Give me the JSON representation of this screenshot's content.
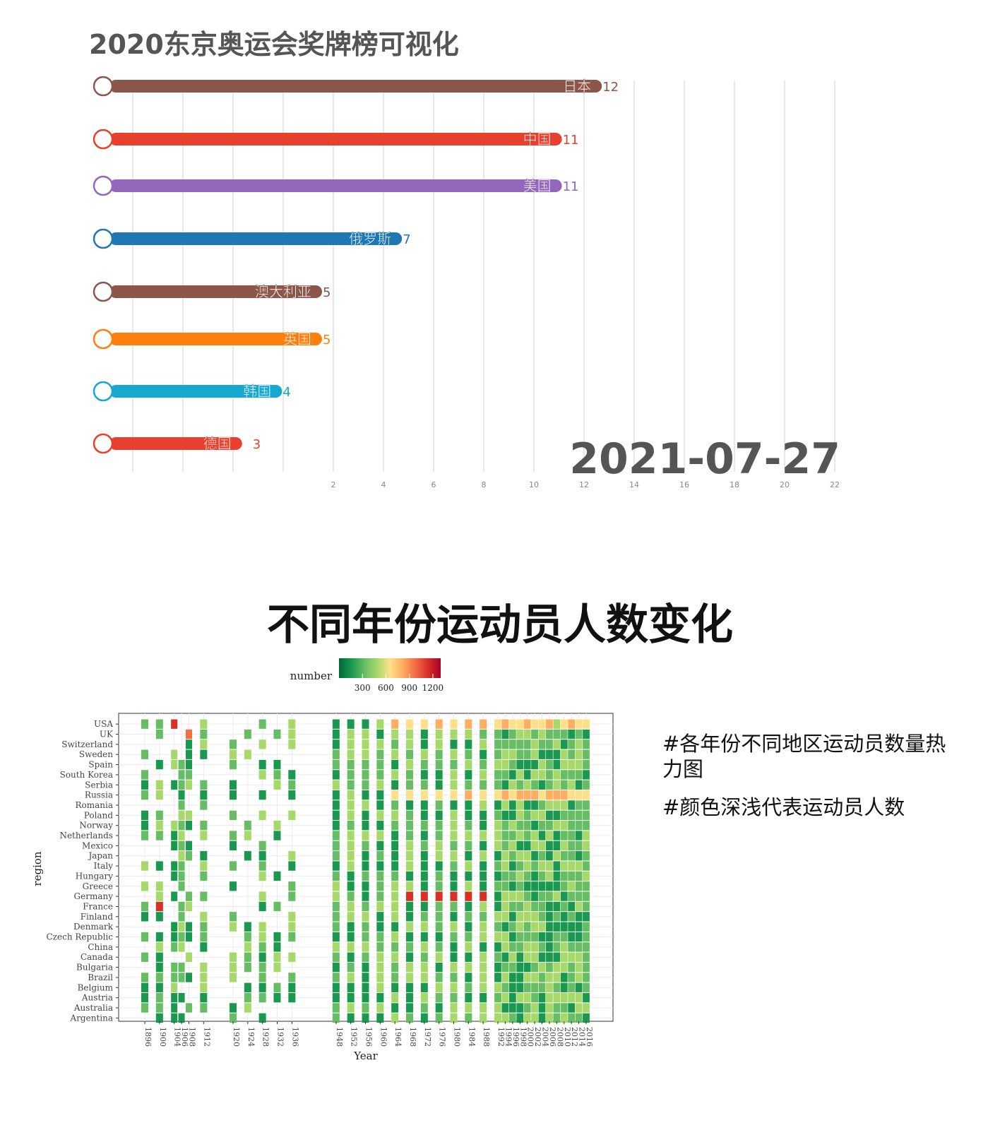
{
  "colors": {
    "title": "#555555",
    "grid": "#d0d0d0",
    "tick": "#888888",
    "date": "#555555",
    "heatmap_panel": "#ebebeb",
    "heatmap_scale": [
      "#006837",
      "#1a9850",
      "#66bd63",
      "#a6d96a",
      "#fee08b",
      "#fdae61",
      "#f46d43",
      "#d73027",
      "#a50026"
    ]
  },
  "chart_data": [
    {
      "type": "bar",
      "title": "2020东京奥运会奖牌榜可视化",
      "date_label": "2021-07-27",
      "orientation": "horizontal",
      "grid": true,
      "xlim": [
        0,
        22
      ],
      "x_ticks": [
        2,
        4,
        6,
        8,
        10,
        12,
        14,
        16,
        18,
        20,
        22
      ],
      "bars": [
        {
          "label": "日本",
          "value": 12,
          "color": "#8c564b",
          "icon": "circle-outline-icon"
        },
        {
          "label": "中国",
          "value": 11,
          "color": "#e8402e",
          "icon": "circle-outline-icon"
        },
        {
          "label": "美国",
          "value": 11,
          "color": "#9467bd",
          "icon": "circle-outline-icon"
        },
        {
          "label": "俄罗斯",
          "value": 7,
          "color": "#1f77b4",
          "icon": "circle-outline-icon"
        },
        {
          "label": "澳大利亚",
          "value": 5,
          "color": "#8c564b",
          "icon": "circle-outline-icon"
        },
        {
          "label": "英国",
          "value": 5,
          "color": "#ff7f0e",
          "icon": "circle-outline-icon"
        },
        {
          "label": "韩国",
          "value": 4,
          "color": "#17a8cf",
          "icon": "circle-outline-icon"
        },
        {
          "label": "德国",
          "value": 3,
          "color": "#e8402e",
          "icon": "circle-outline-icon"
        }
      ]
    },
    {
      "type": "heatmap",
      "title": "不同年份运动员人数变化",
      "xlabel": "Year",
      "ylabel": "region",
      "legend": {
        "title": "number",
        "placement": "top",
        "ticks": [
          300,
          600,
          900,
          1200
        ],
        "range": [
          0,
          1300
        ]
      },
      "years": [
        1896,
        1900,
        1904,
        1906,
        1908,
        1912,
        1920,
        1924,
        1928,
        1932,
        1936,
        1948,
        1952,
        1956,
        1960,
        1964,
        1968,
        1972,
        1976,
        1980,
        1984,
        1988,
        1992,
        1994,
        1996,
        1998,
        2000,
        2002,
        2004,
        2006,
        2008,
        2010,
        2012,
        2014,
        2016
      ],
      "regions": [
        "USA",
        "UK",
        "Switzerland",
        "Sweden",
        "Spain",
        "South Korea",
        "Serbia",
        "Russia",
        "Romania",
        "Poland",
        "Norway",
        "Netherlands",
        "Mexico",
        "Japan",
        "Italy",
        "Hungary",
        "Greece",
        "Germany",
        "France",
        "Finland",
        "Denmark",
        "Czech Republic",
        "China",
        "Canada",
        "Bulgaria",
        "Brazil",
        "Belgium",
        "Austria",
        "Australia",
        "Argentina"
      ],
      "notes": [
        "#各年份不同地区运动员数量热力图",
        "#颜色深浅代表运动员人数"
      ]
    }
  ]
}
